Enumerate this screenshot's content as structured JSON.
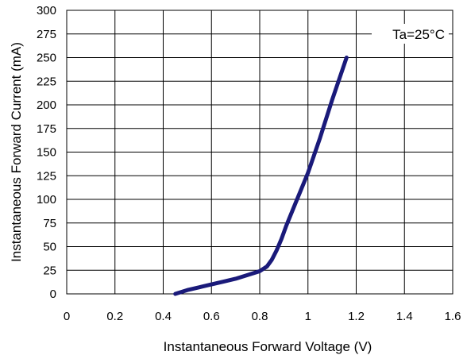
{
  "chart_data": {
    "type": "line",
    "xlabel": "Instantaneous Forward Voltage (V)",
    "ylabel": "Instantaneous Forward Current (mA)",
    "xlim": [
      0,
      1.6
    ],
    "ylim": [
      0,
      300
    ],
    "xticks": [
      "0",
      "0.2",
      "0.4",
      "0.6",
      "0.8",
      "1",
      "1.2",
      "1.4",
      "1.6"
    ],
    "yticks": [
      "0",
      "25",
      "50",
      "75",
      "100",
      "125",
      "150",
      "175",
      "200",
      "225",
      "250",
      "275",
      "300"
    ],
    "grid": true,
    "annotation": "Ta=25°C",
    "series_color": "#1a1a7a",
    "series": [
      {
        "x": [
          0.45,
          0.5,
          0.55,
          0.6,
          0.65,
          0.7,
          0.75,
          0.8,
          0.83,
          0.85,
          0.87,
          0.89,
          0.91,
          0.95,
          1.0,
          1.05,
          1.1,
          1.16
        ],
        "y": [
          0,
          4,
          7,
          10,
          13,
          16,
          20,
          24,
          29,
          36,
          46,
          58,
          72,
          97,
          128,
          165,
          205,
          250
        ]
      }
    ]
  }
}
